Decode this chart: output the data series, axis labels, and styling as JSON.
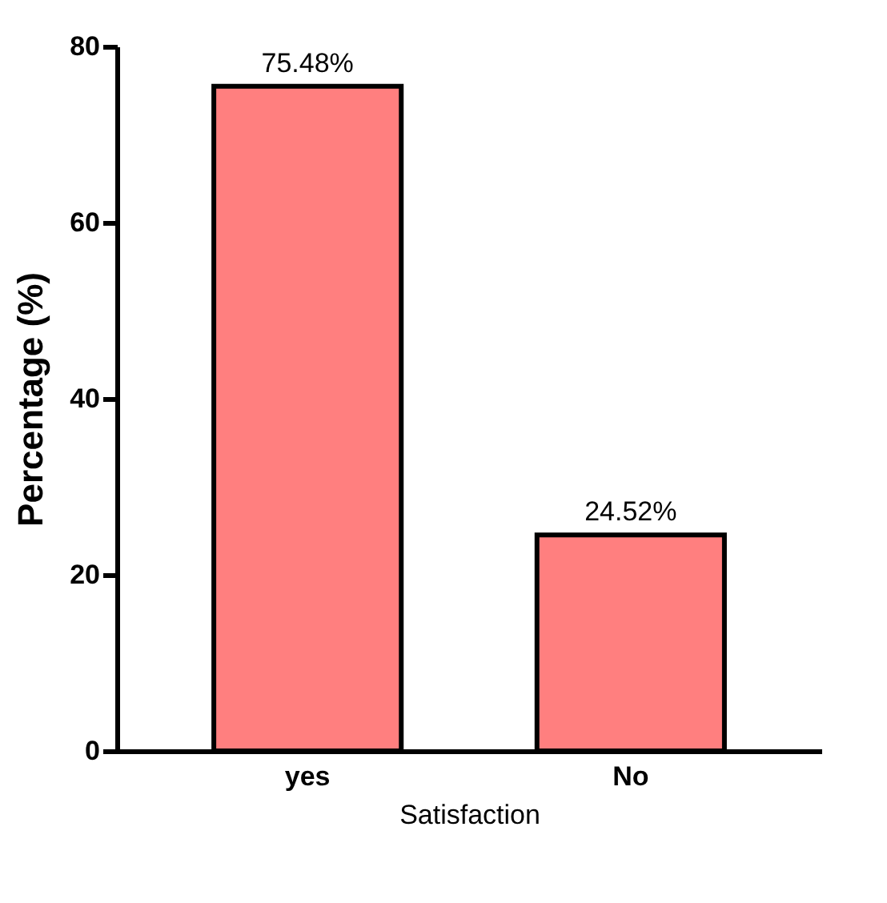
{
  "chart_data": {
    "type": "bar",
    "xlabel": "Satisfaction",
    "ylabel": "Percentage (%)",
    "categories": [
      "yes",
      "No"
    ],
    "values": [
      75.48,
      24.52
    ],
    "value_labels": [
      "75.48%",
      "24.52%"
    ],
    "color": "#ff7f7f",
    "ylim": [
      0,
      80
    ],
    "yticks": [
      0,
      20,
      40,
      60,
      80
    ],
    "grid": false
  }
}
